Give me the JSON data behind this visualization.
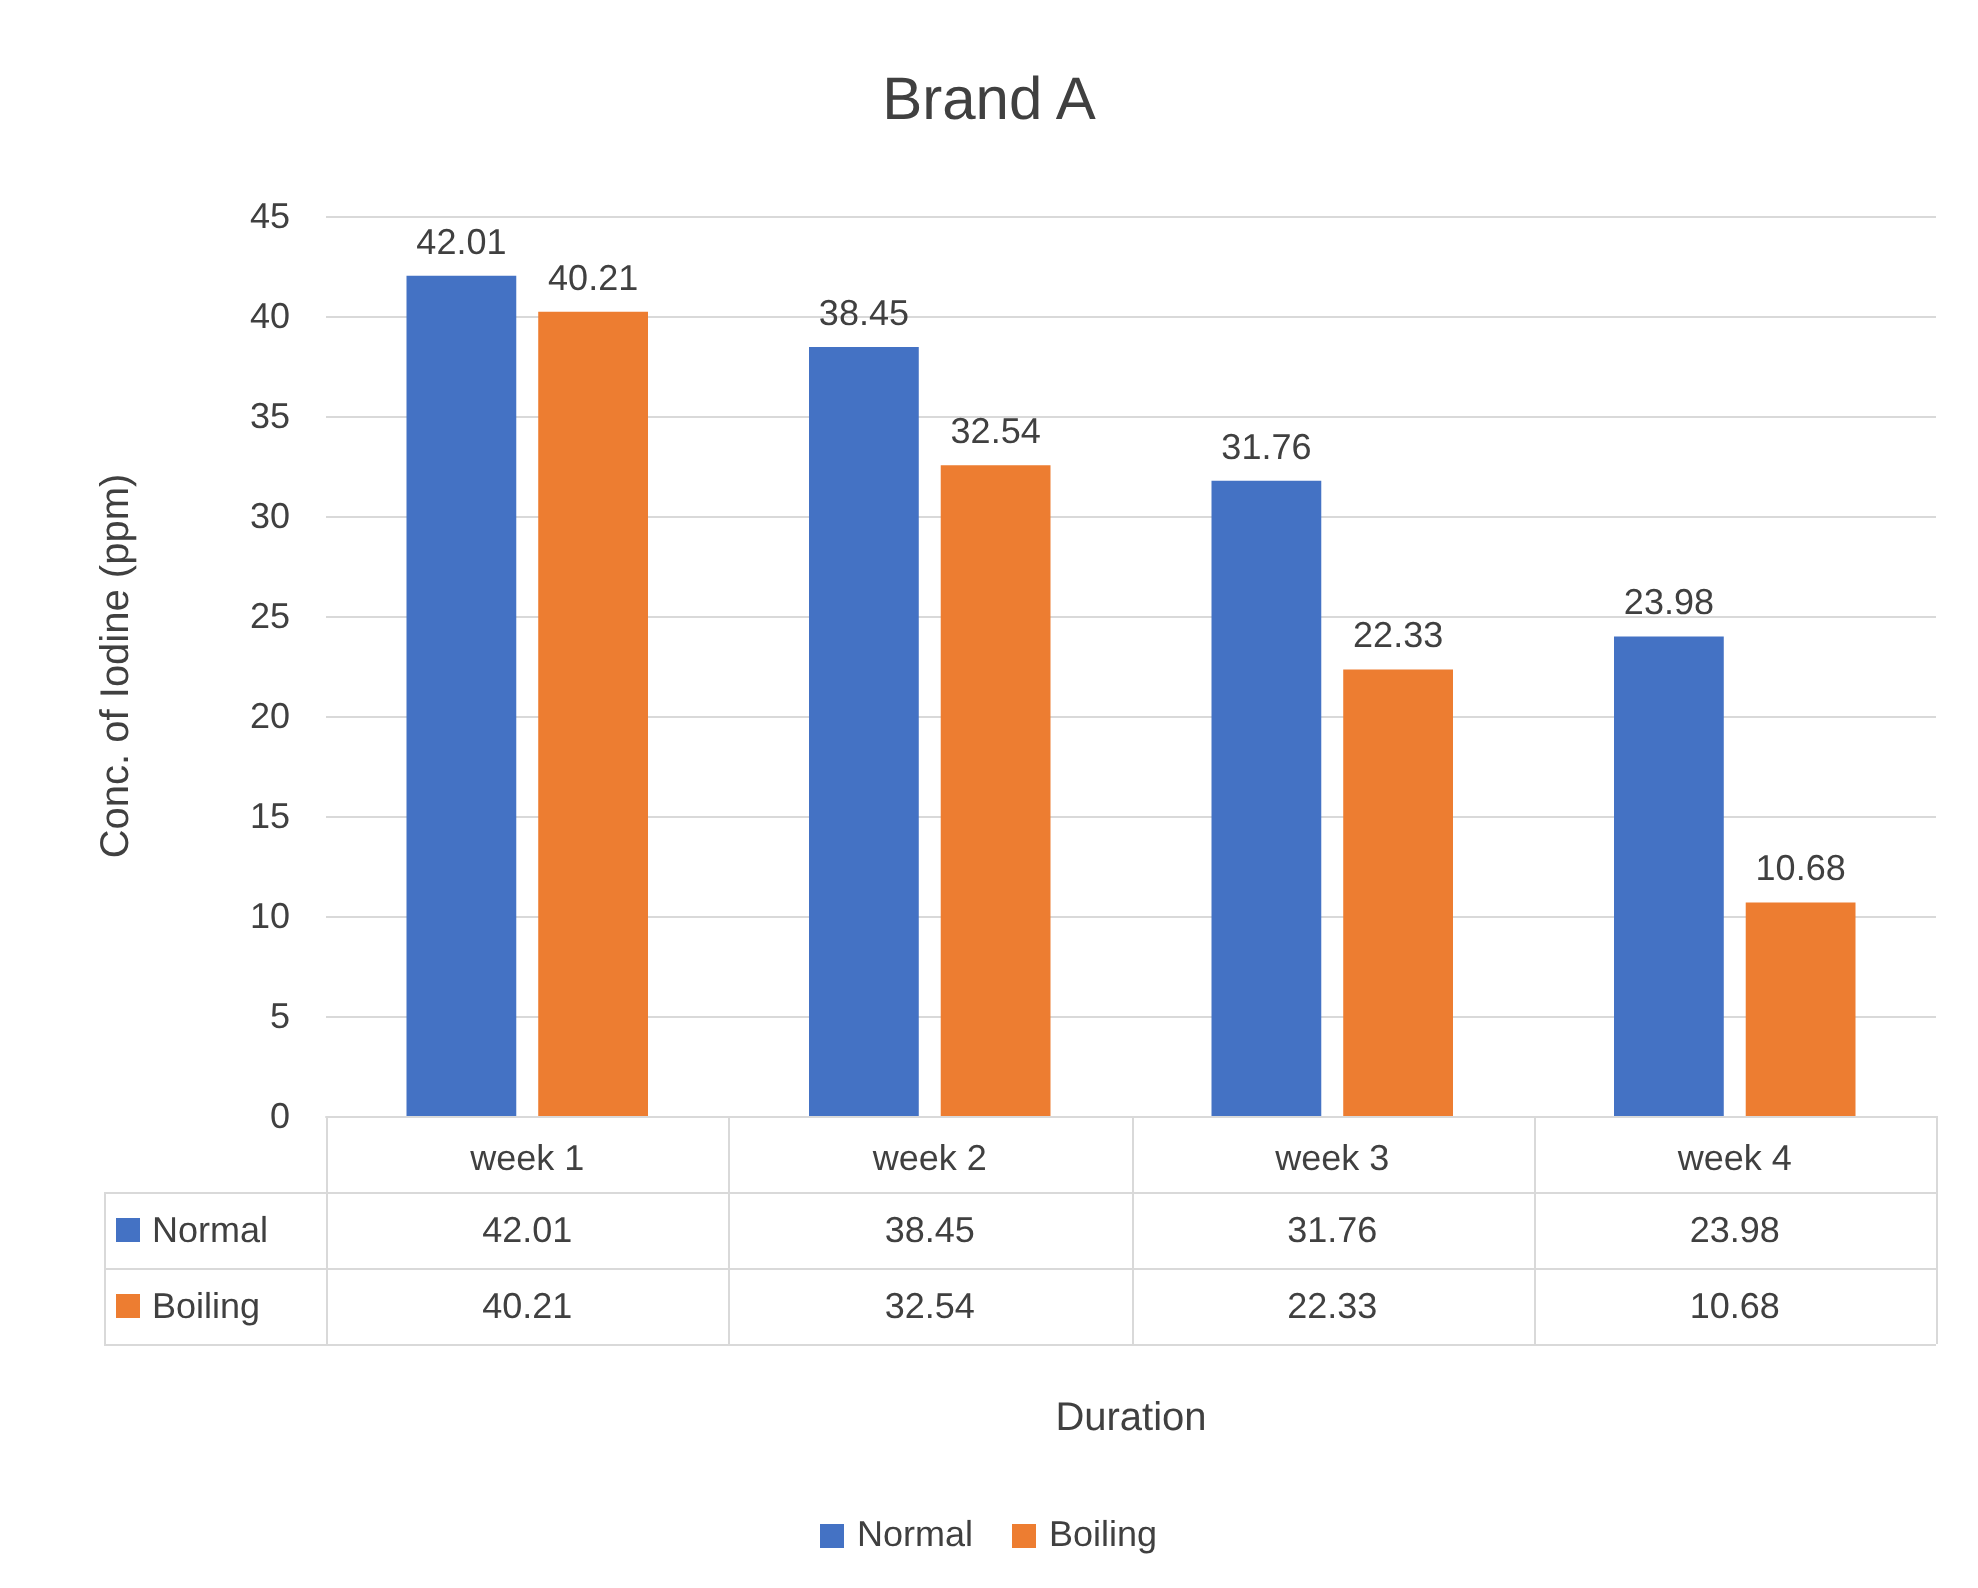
{
  "chart_data": {
    "type": "bar",
    "title": "Brand A",
    "ylabel": "Conc. of Iodine (ppm)",
    "categories": [
      "week 1",
      "week 2",
      "week 3",
      "week 4"
    ],
    "series": [
      {
        "name": "Normal",
        "color": "#4472c4",
        "values": [
          42.01,
          38.45,
          31.76,
          23.98
        ],
        "value_labels": [
          "42.01",
          "38.45",
          "31.76",
          "23.98"
        ]
      },
      {
        "name": "Boiling",
        "color": "#ed7d31",
        "values": [
          40.21,
          32.54,
          22.33,
          10.68
        ],
        "value_labels": [
          "40.21",
          "32.54",
          "22.33",
          "10.68"
        ]
      }
    ],
    "annotations": [
      "42.01",
      "38.45",
      "31.76",
      "23.98",
      "40.21",
      "32.54",
      "22.33",
      "10.68",
      "Duration"
    ],
    "ylim": [
      0,
      45
    ],
    "yticks": [
      0,
      5,
      10,
      15,
      20,
      25,
      30,
      35,
      40,
      45
    ],
    "grid": "y",
    "legend": "bottom"
  }
}
